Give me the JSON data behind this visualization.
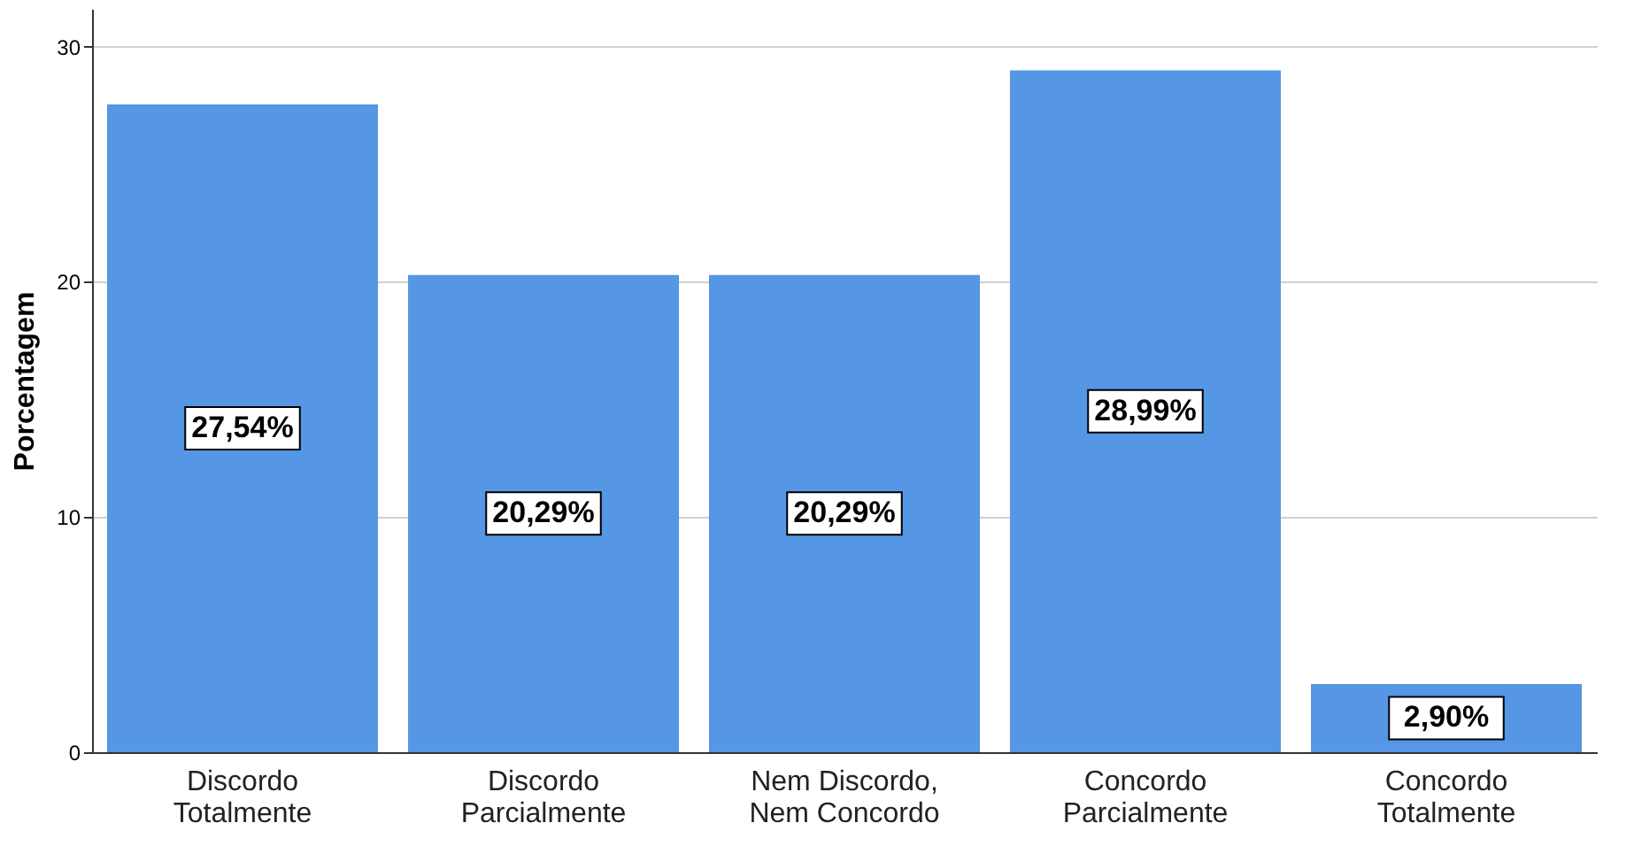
{
  "chart_data": {
    "type": "bar",
    "ylabel": "Porcentagem",
    "categories": [
      "Discordo\nTotalmente",
      "Discordo\nParcialmente",
      "Nem Discordo,\nNem Concordo",
      "Concordo\nParcialmente",
      "Concordo\nTotalmente"
    ],
    "values": [
      27.54,
      20.29,
      20.29,
      28.99,
      2.9
    ],
    "value_labels": [
      "27,54%",
      "20,29%",
      "20,29%",
      "28,99%",
      "2,90%"
    ],
    "color": "#5596e5",
    "ylim": [
      0,
      31.6
    ],
    "yticks": [
      0,
      10,
      20,
      30
    ],
    "grid": "y"
  }
}
